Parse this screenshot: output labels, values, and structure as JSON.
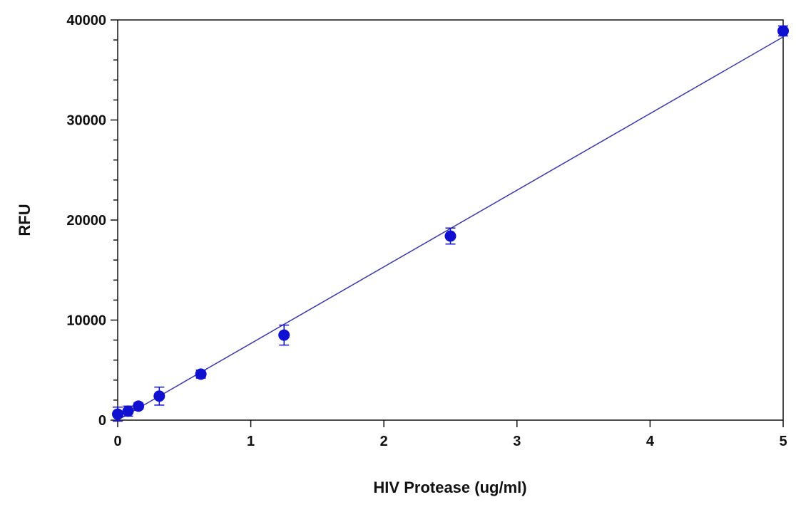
{
  "chart_data": {
    "type": "scatter",
    "title": "",
    "xlabel": "HIV Protease (ug/ml)",
    "ylabel": "RFU",
    "xlim": [
      0,
      5
    ],
    "ylim": [
      0,
      40000
    ],
    "x_ticks": [
      0,
      1,
      2,
      3,
      4,
      5
    ],
    "x_tick_labels": [
      "0",
      "1",
      "2",
      "3",
      "4",
      "5"
    ],
    "y_ticks": [
      0,
      10000,
      20000,
      30000,
      40000
    ],
    "y_tick_labels": [
      "0",
      "10000",
      "20000",
      "30000",
      "40000"
    ],
    "y_minor_step": 2000,
    "grid": false,
    "legend": "none",
    "colors": {
      "points": "#1010d0",
      "line": "#3a3aa8",
      "axes": "#111111"
    },
    "series": [
      {
        "x": [
          0,
          0.078,
          0.156,
          0.3125,
          0.625,
          1.25,
          2.5,
          5
        ],
        "y": [
          600,
          900,
          1400,
          2400,
          4600,
          8500,
          18400,
          38900
        ],
        "error": [
          700,
          500,
          300,
          900,
          400,
          1000,
          800,
          500
        ]
      }
    ],
    "fit_line": {
      "x": [
        0,
        5
      ],
      "y": [
        0,
        38300
      ]
    }
  }
}
